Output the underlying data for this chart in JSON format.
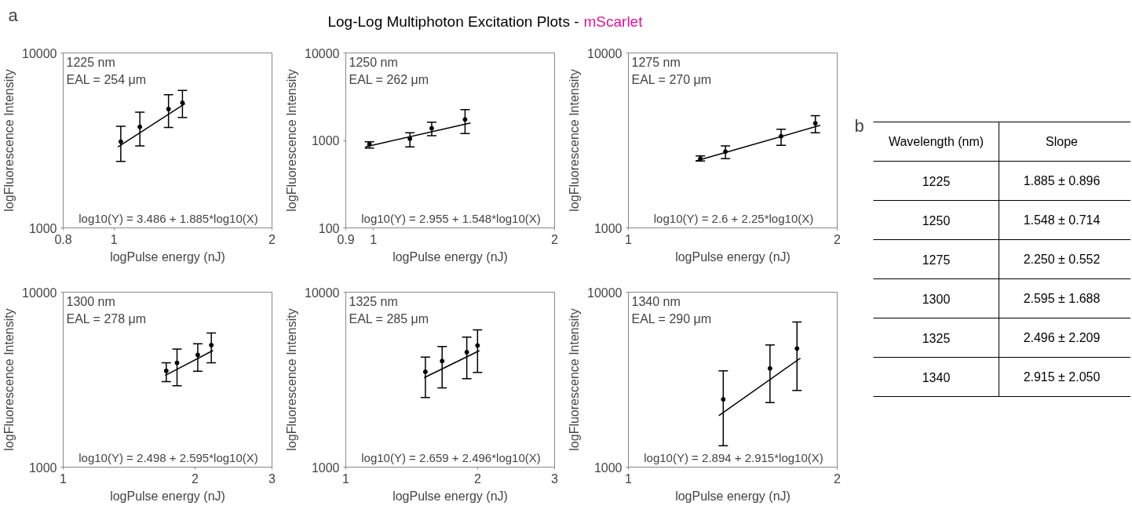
{
  "chart_data": [
    {
      "type": "other",
      "title": "Log-Log Multiphoton Excitation Plots -",
      "subtitle": "mScarlet",
      "color": "#e0139a",
      "annotations": [
        "a"
      ]
    },
    {
      "type": "scatter",
      "marker": "circle",
      "log": "xy",
      "grid": false,
      "xlabel": "logPulse energy (nJ)",
      "ylabel": "logFluorescence Intensity",
      "xlim": [
        0.8,
        2
      ],
      "xticks": [
        0.8,
        1,
        2
      ],
      "ylim": [
        1000,
        10000
      ],
      "yticks": [
        1000,
        10000
      ],
      "annotations": [
        "1225 nm",
        "EAL = 254 μm",
        "log10(Y) = 3.486 + 1.885*log10(X)"
      ],
      "series": [
        {
          "color": "#000000",
          "x": [
            1.03,
            1.12,
            1.27,
            1.35
          ],
          "values": [
            3110,
            3775,
            4780,
            5190
          ],
          "errors": [
            [
              2400,
              3810
            ],
            [
              2940,
              4590
            ],
            [
              3750,
              5770
            ],
            [
              4280,
              6110
            ]
          ]
        },
        {
          "type": "line",
          "color": "#000000",
          "x": [
            1.017,
            1.365
          ],
          "values": [
            2900,
            5130
          ],
          "marker": "none"
        }
      ]
    },
    {
      "type": "scatter",
      "marker": "circle",
      "log": "xy",
      "grid": false,
      "xlabel": "logPulse energy (nJ)",
      "ylabel": "logFluorescence Intensity",
      "xlim": [
        0.9,
        2
      ],
      "xticks": [
        0.9,
        1,
        2
      ],
      "ylim": [
        100,
        10000
      ],
      "yticks": [
        100,
        1000,
        10000
      ],
      "annotations": [
        "1250 nm",
        "EAL = 262 μm",
        "log10(Y) = 2.955 + 1.548*log10(X)"
      ],
      "series": [
        {
          "color": "#000000",
          "x": [
            0.985,
            1.15,
            1.25,
            1.42
          ],
          "values": [
            905,
            1045,
            1375,
            1735
          ],
          "errors": [
            [
              817,
              966
            ],
            [
              845,
              1225
            ],
            [
              1130,
              1620
            ],
            [
              1200,
              2250
            ]
          ]
        },
        {
          "type": "line",
          "color": "#000000",
          "x": [
            0.97,
            1.45
          ],
          "values": [
            845,
            1585
          ],
          "marker": "none"
        }
      ]
    },
    {
      "type": "scatter",
      "marker": "circle",
      "log": "xy",
      "grid": false,
      "xlabel": "logPulse energy (nJ)",
      "ylabel": "logFluorescence Intensity",
      "xlim": [
        1,
        2
      ],
      "xticks": [
        1,
        2
      ],
      "ylim": [
        1000,
        10000
      ],
      "yticks": [
        1000,
        10000
      ],
      "annotations": [
        "1275 nm",
        "EAL = 270 μm",
        "log10(Y) = 2.6 + 2.25*log10(X)"
      ],
      "series": [
        {
          "color": "#000000",
          "x": [
            1.27,
            1.38,
            1.66,
            1.86
          ],
          "values": [
            2490,
            2730,
            3340,
            3960
          ],
          "errors": [
            [
              2410,
              2580
            ],
            [
              2490,
              2945
            ],
            [
              2965,
              3665
            ],
            [
              3500,
              4380
            ]
          ]
        },
        {
          "type": "line",
          "color": "#000000",
          "x": [
            1.25,
            1.89
          ],
          "values": [
            2410,
            3855
          ],
          "marker": "none"
        }
      ]
    },
    {
      "type": "scatter",
      "marker": "circle",
      "log": "xy",
      "grid": false,
      "xlabel": "logPulse energy (nJ)",
      "ylabel": "logFluorescence Intensity",
      "xlim": [
        1,
        3
      ],
      "xticks": [
        1,
        2,
        3
      ],
      "ylim": [
        1000,
        10000
      ],
      "yticks": [
        1000,
        10000
      ],
      "annotations": [
        "1300 nm",
        "EAL = 278 μm",
        "log10(Y) = 2.498 + 2.595*log10(X)"
      ],
      "series": [
        {
          "color": "#000000",
          "x": [
            1.72,
            1.82,
            2.03,
            2.18
          ],
          "values": [
            3550,
            3945,
            4380,
            4985
          ],
          "errors": [
            [
              3085,
              3945
            ],
            [
              2920,
              4725
            ],
            [
              3530,
              5070
            ],
            [
              3945,
              5840
            ]
          ]
        },
        {
          "type": "line",
          "color": "#000000",
          "x": [
            1.71,
            2.2
          ],
          "values": [
            3345,
            4645
          ],
          "marker": "none"
        }
      ]
    },
    {
      "type": "scatter",
      "marker": "circle",
      "log": "xy",
      "grid": false,
      "xlabel": "logPulse energy (nJ)",
      "ylabel": "logFluorescence Intensity",
      "xlim": [
        1,
        3
      ],
      "xticks": [
        1,
        2,
        3
      ],
      "ylim": [
        1000,
        10000
      ],
      "yticks": [
        1000,
        10000
      ],
      "annotations": [
        "1325 nm",
        "EAL = 285 μm",
        "log10(Y) = 2.659 + 2.496*log10(X)"
      ],
      "series": [
        {
          "color": "#000000",
          "x": [
            1.52,
            1.66,
            1.89,
            2.0
          ],
          "values": [
            3510,
            4040,
            4540,
            4960
          ],
          "errors": [
            [
              2500,
              4255
            ],
            [
              2840,
              4890
            ],
            [
              3200,
              5540
            ],
            [
              3475,
              6090
            ]
          ]
        },
        {
          "type": "line",
          "color": "#000000",
          "x": [
            1.51,
            2.02
          ],
          "values": [
            3245,
            4635
          ],
          "marker": "none"
        }
      ]
    },
    {
      "type": "scatter",
      "marker": "circle",
      "log": "xy",
      "grid": false,
      "xlabel": "logPulse energy (nJ)",
      "ylabel": "logFluorescence Intensity",
      "xlim": [
        1,
        2
      ],
      "xticks": [
        1,
        2
      ],
      "ylim": [
        1000,
        10000
      ],
      "yticks": [
        1000,
        10000
      ],
      "annotations": [
        "1340 nm",
        "EAL = 290 μm",
        "log10(Y) = 2.894 + 2.915*log10(X)"
      ],
      "series": [
        {
          "color": "#000000",
          "x": [
            1.37,
            1.6,
            1.75
          ],
          "values": [
            2440,
            3665,
            4765
          ],
          "errors": [
            [
              1325,
              3550
            ],
            [
              2340,
              4990
            ],
            [
              2745,
              6760
            ]
          ]
        },
        {
          "type": "line",
          "color": "#000000",
          "x": [
            1.35,
            1.77
          ],
          "values": [
            1970,
            4200
          ],
          "marker": "none"
        }
      ]
    },
    {
      "type": "heatmap",
      "title": "b",
      "ylabel": "Wavelength (nm)",
      "categories": [
        "Slope"
      ],
      "y_categories": [
        "1225",
        "1250",
        "1275",
        "1300",
        "1325",
        "1340"
      ],
      "color": "#ffffff",
      "cells": [
        [
          null
        ],
        [
          null
        ],
        [
          null
        ],
        [
          null
        ],
        [
          null
        ],
        [
          null
        ]
      ],
      "cell_labels": [
        [
          "1.885 ± 0.896"
        ],
        [
          "1.548 ± 0.714"
        ],
        [
          "2.250 ± 0.552"
        ],
        [
          "2.595 ± 1.688"
        ],
        [
          "2.496 ± 2.209"
        ],
        [
          "2.915 ± 2.050"
        ]
      ]
    }
  ]
}
